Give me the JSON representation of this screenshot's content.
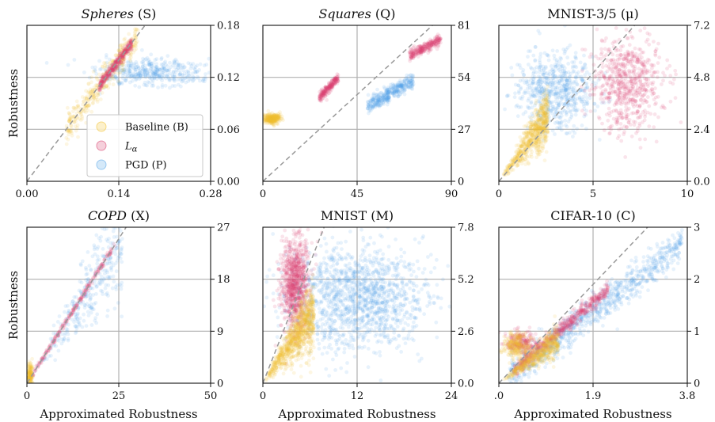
{
  "figure": {
    "xlabel": "Approximated Robustness",
    "ylabel": "Robustness",
    "colors": {
      "baseline": "#f2c230",
      "lalpha": "#d9426f",
      "pgd": "#58a6e8",
      "diag": "#999999",
      "grid": "#b0b0b0"
    }
  },
  "legend": {
    "placement": "lower-right of first panel",
    "entries": [
      {
        "label": "Baseline (B)",
        "color": "#f2c230"
      },
      {
        "label": "L",
        "sub": "α",
        "color": "#d9426f"
      },
      {
        "label": "PGD (P)",
        "color": "#58a6e8"
      }
    ]
  },
  "chart_data": [
    {
      "type": "scatter",
      "title_italic": "Spheres",
      "title_rest": " (S)",
      "xlim": [
        0,
        0.28
      ],
      "ylim": [
        0,
        0.18
      ],
      "xticks": [
        0,
        0.14,
        0.28
      ],
      "xtick_labels": [
        "0.00",
        "0.14",
        "0.28"
      ],
      "yticks": [
        0,
        0.06,
        0.12,
        0.18
      ],
      "ytick_labels": [
        "0.00",
        "0.06",
        "0.12",
        "0.18"
      ],
      "grid": true,
      "diagonal": "y = x",
      "show_xlabel": false,
      "show_ylabel": true,
      "series": [
        {
          "key": "pgd",
          "clusters": [
            {
              "kind": "blob",
              "cx": 0.19,
              "cy": 0.125,
              "sx": 0.04,
              "sy": 0.008,
              "n": 420
            }
          ]
        },
        {
          "key": "baseline",
          "clusters": [
            {
              "kind": "line",
              "x0": 0.06,
              "x1": 0.17,
              "slope": 1.0,
              "off": 0.0,
              "spread": 0.008,
              "n": 380
            }
          ]
        },
        {
          "key": "lalpha",
          "clusters": [
            {
              "kind": "line",
              "x0": 0.11,
              "x1": 0.16,
              "slope": 1.0,
              "off": 0.0,
              "spread": 0.003,
              "n": 350
            }
          ]
        }
      ]
    },
    {
      "type": "scatter",
      "title_italic": "Squares",
      "title_rest": " (Q)",
      "xlim": [
        0,
        90
      ],
      "ylim": [
        0,
        81
      ],
      "xticks": [
        0,
        45,
        90
      ],
      "xtick_labels": [
        "0",
        "45",
        "90"
      ],
      "yticks": [
        0,
        27,
        54,
        81
      ],
      "ytick_labels": [
        "0",
        "27",
        "54",
        "81"
      ],
      "grid": true,
      "diagonal": "y = x",
      "show_xlabel": false,
      "show_ylabel": false,
      "series": [
        {
          "key": "pgd",
          "clusters": [
            {
              "kind": "line",
              "x0": 50,
              "x1": 72,
              "slope": 0.6,
              "off": 9,
              "spread": 2.0,
              "n": 380
            }
          ]
        },
        {
          "key": "baseline",
          "clusters": [
            {
              "kind": "blob",
              "cx": 4.5,
              "cy": 32.5,
              "sx": 2.2,
              "sy": 1.2,
              "n": 300
            }
          ]
        },
        {
          "key": "lalpha",
          "clusters": [
            {
              "kind": "line",
              "x0": 27,
              "x1": 36,
              "slope": 1.1,
              "off": 14,
              "spread": 1.3,
              "n": 220
            },
            {
              "kind": "line",
              "x0": 70,
              "x1": 85,
              "slope": 0.6,
              "off": 23,
              "spread": 1.3,
              "n": 260
            }
          ]
        }
      ]
    },
    {
      "type": "scatter",
      "title_italic": "",
      "title_rest": "MNIST-3/5 (μ)",
      "xlim": [
        0,
        10
      ],
      "ylim": [
        0,
        7.2
      ],
      "xticks": [
        0,
        5,
        10
      ],
      "xtick_labels": [
        "0",
        "5",
        "10"
      ],
      "yticks": [
        0,
        2.4,
        4.8,
        7.2
      ],
      "ytick_labels": [
        "0.0",
        "2.4",
        "4.8",
        "7.2"
      ],
      "grid": true,
      "diagonal": "y = x",
      "show_xlabel": false,
      "show_ylabel": false,
      "series": [
        {
          "key": "pgd",
          "clusters": [
            {
              "kind": "blob",
              "cx": 3.0,
              "cy": 4.2,
              "sx": 1.0,
              "sy": 0.9,
              "n": 650
            }
          ]
        },
        {
          "key": "lalpha",
          "clusters": [
            {
              "kind": "blob",
              "cx": 6.8,
              "cy": 4.5,
              "sx": 0.9,
              "sy": 1.1,
              "n": 650
            }
          ]
        },
        {
          "key": "baseline",
          "clusters": [
            {
              "kind": "wedge",
              "x0": 0.1,
              "x1": 2.6,
              "slope": 1.15,
              "spread": 0.35,
              "n": 650
            }
          ]
        }
      ]
    },
    {
      "type": "scatter",
      "title_italic": "COPD",
      "title_rest": " (X)",
      "xlim": [
        0,
        50
      ],
      "ylim": [
        0,
        27
      ],
      "xticks": [
        0,
        25,
        50
      ],
      "xtick_labels": [
        "0",
        "25",
        "50"
      ],
      "yticks": [
        0,
        9,
        18,
        27
      ],
      "ytick_labels": [
        "0",
        "9",
        "18",
        "27"
      ],
      "grid": true,
      "diagonal": "y = x",
      "show_xlabel": true,
      "show_ylabel": true,
      "series": [
        {
          "key": "pgd",
          "clusters": [
            {
              "kind": "wedge",
              "x0": 0.5,
              "x1": 26,
              "slope": 0.95,
              "spread": 2.5,
              "n": 320
            }
          ]
        },
        {
          "key": "lalpha",
          "clusters": [
            {
              "kind": "line",
              "x0": 1,
              "x1": 24,
              "slope": 1.0,
              "off": 0,
              "spread": 0.25,
              "n": 260
            }
          ]
        },
        {
          "key": "baseline",
          "clusters": [
            {
              "kind": "blob",
              "cx": 0.8,
              "cy": 1.4,
              "sx": 0.4,
              "sy": 1.0,
              "n": 160
            }
          ]
        }
      ]
    },
    {
      "type": "scatter",
      "title_italic": "",
      "title_rest": "MNIST (M)",
      "xlim": [
        0,
        24
      ],
      "ylim": [
        0,
        7.8
      ],
      "xticks": [
        0,
        12,
        24
      ],
      "xtick_labels": [
        "0",
        "12",
        "24"
      ],
      "yticks": [
        0,
        2.6,
        5.2,
        7.8
      ],
      "ytick_labels": [
        "0.0",
        "2.6",
        "5.2",
        "7.8"
      ],
      "grid": true,
      "diagonal": "y = x",
      "show_xlabel": true,
      "show_ylabel": false,
      "series": [
        {
          "key": "pgd",
          "clusters": [
            {
              "kind": "blob",
              "cx": 12.0,
              "cy": 4.3,
              "sx": 4.5,
              "sy": 1.3,
              "n": 1400
            }
          ]
        },
        {
          "key": "lalpha",
          "clusters": [
            {
              "kind": "blob",
              "cx": 4.0,
              "cy": 5.0,
              "sx": 0.9,
              "sy": 1.2,
              "n": 900
            }
          ]
        },
        {
          "key": "baseline",
          "clusters": [
            {
              "kind": "wedge",
              "x0": 0.1,
              "x1": 6.5,
              "slope": 0.55,
              "spread": 0.45,
              "n": 900
            }
          ]
        }
      ]
    },
    {
      "type": "scatter",
      "title_italic": "",
      "title_rest": "CIFAR-10 (C)",
      "xlim": [
        0,
        3.8
      ],
      "ylim": [
        0,
        3
      ],
      "xticks": [
        0,
        1.9,
        3.8
      ],
      "xtick_labels": [
        ".0",
        "1.9",
        "3.8"
      ],
      "yticks": [
        0,
        1,
        2,
        3
      ],
      "ytick_labels": [
        "0",
        "1",
        "2",
        "3"
      ],
      "grid": true,
      "diagonal": "y = x",
      "show_xlabel": true,
      "show_ylabel": false,
      "series": [
        {
          "key": "pgd",
          "clusters": [
            {
              "kind": "line",
              "x0": 0.2,
              "x1": 3.7,
              "slope": 0.72,
              "off": 0.0,
              "spread": 0.16,
              "n": 900
            }
          ]
        },
        {
          "key": "lalpha",
          "clusters": [
            {
              "kind": "line",
              "x0": 0.3,
              "x1": 2.2,
              "slope": 0.82,
              "off": 0.0,
              "spread": 0.07,
              "n": 600
            },
            {
              "kind": "blob",
              "cx": 0.45,
              "cy": 0.78,
              "sx": 0.16,
              "sy": 0.1,
              "n": 220
            }
          ]
        },
        {
          "key": "baseline",
          "clusters": [
            {
              "kind": "wedge",
              "x0": 0.05,
              "x1": 1.2,
              "slope": 0.7,
              "spread": 0.08,
              "n": 500
            },
            {
              "kind": "blob",
              "cx": 0.35,
              "cy": 0.72,
              "sx": 0.15,
              "sy": 0.12,
              "n": 250
            }
          ]
        }
      ]
    }
  ]
}
